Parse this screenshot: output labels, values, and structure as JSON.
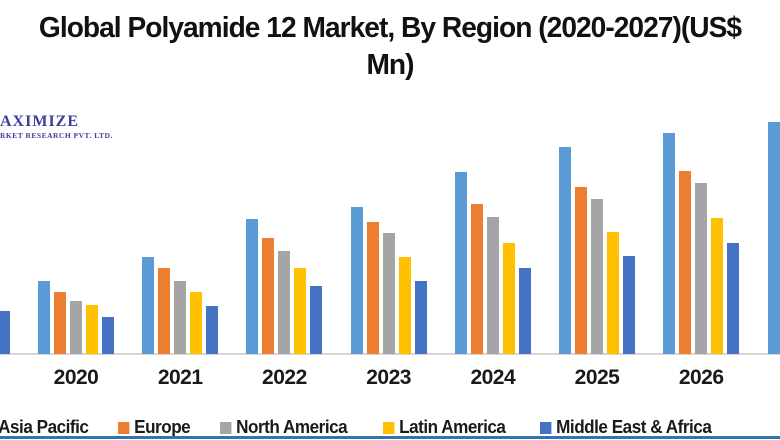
{
  "header": {
    "title_lines": [
      "Global Polyamide 12 Market, By Region (2020-2027)(US$",
      "Mn)"
    ]
  },
  "watermark": {
    "line1": "AXIMIZE",
    "line2": "RKET RESEARCH PVT. LTD.",
    "color": "#3E3E9C"
  },
  "chart_data": {
    "type": "bar",
    "title": "Global Polyamide 12 Market, By Region (2020-2027)(US$ Mn)",
    "xlabel": "",
    "ylabel": "",
    "units": "US$ Mn (y-axis values not shown in image)",
    "grid": false,
    "legend_position": "bottom",
    "y_axis_visible": false,
    "categories": [
      "2020",
      "2021",
      "2022",
      "2023",
      "2024",
      "2025",
      "2026"
    ],
    "series": [
      {
        "name": "Asia Pacific",
        "color": "#5B9BD5",
        "values": [
          73,
          97,
          135,
          147,
          182,
          207,
          221
        ]
      },
      {
        "name": "Europe",
        "color": "#ED7D31",
        "values": [
          62,
          86,
          116,
          132,
          150,
          167,
          183
        ]
      },
      {
        "name": "North America",
        "color": "#A5A5A5",
        "values": [
          53,
          73,
          103,
          121,
          137,
          155,
          171
        ]
      },
      {
        "name": "Latin America",
        "color": "#FFC000",
        "values": [
          49,
          62,
          86,
          97,
          111,
          122,
          136
        ]
      },
      {
        "name": "Middle East & Africa",
        "color": "#4472C4",
        "values": [
          37,
          48,
          68,
          73,
          86,
          98,
          111
        ]
      }
    ],
    "partial_bars": [
      {
        "edge": "left",
        "series": "Middle East & Africa",
        "value": 43
      },
      {
        "edge": "right",
        "series": "Asia Pacific",
        "category": "2027",
        "value": 232
      }
    ],
    "value_scale_note": "values are relative bar heights; no numeric axis shown"
  },
  "legend": {
    "items": [
      "Asia Pacific",
      "Europe",
      "North America",
      "Latin America",
      "Middle East & Africa"
    ],
    "first_marker_clipped": true
  },
  "colors": {
    "background": "#FFFFFF",
    "axis_line": "#D6D6D6",
    "bottom_rule": "#2E75B6",
    "title_text": "#111111"
  }
}
